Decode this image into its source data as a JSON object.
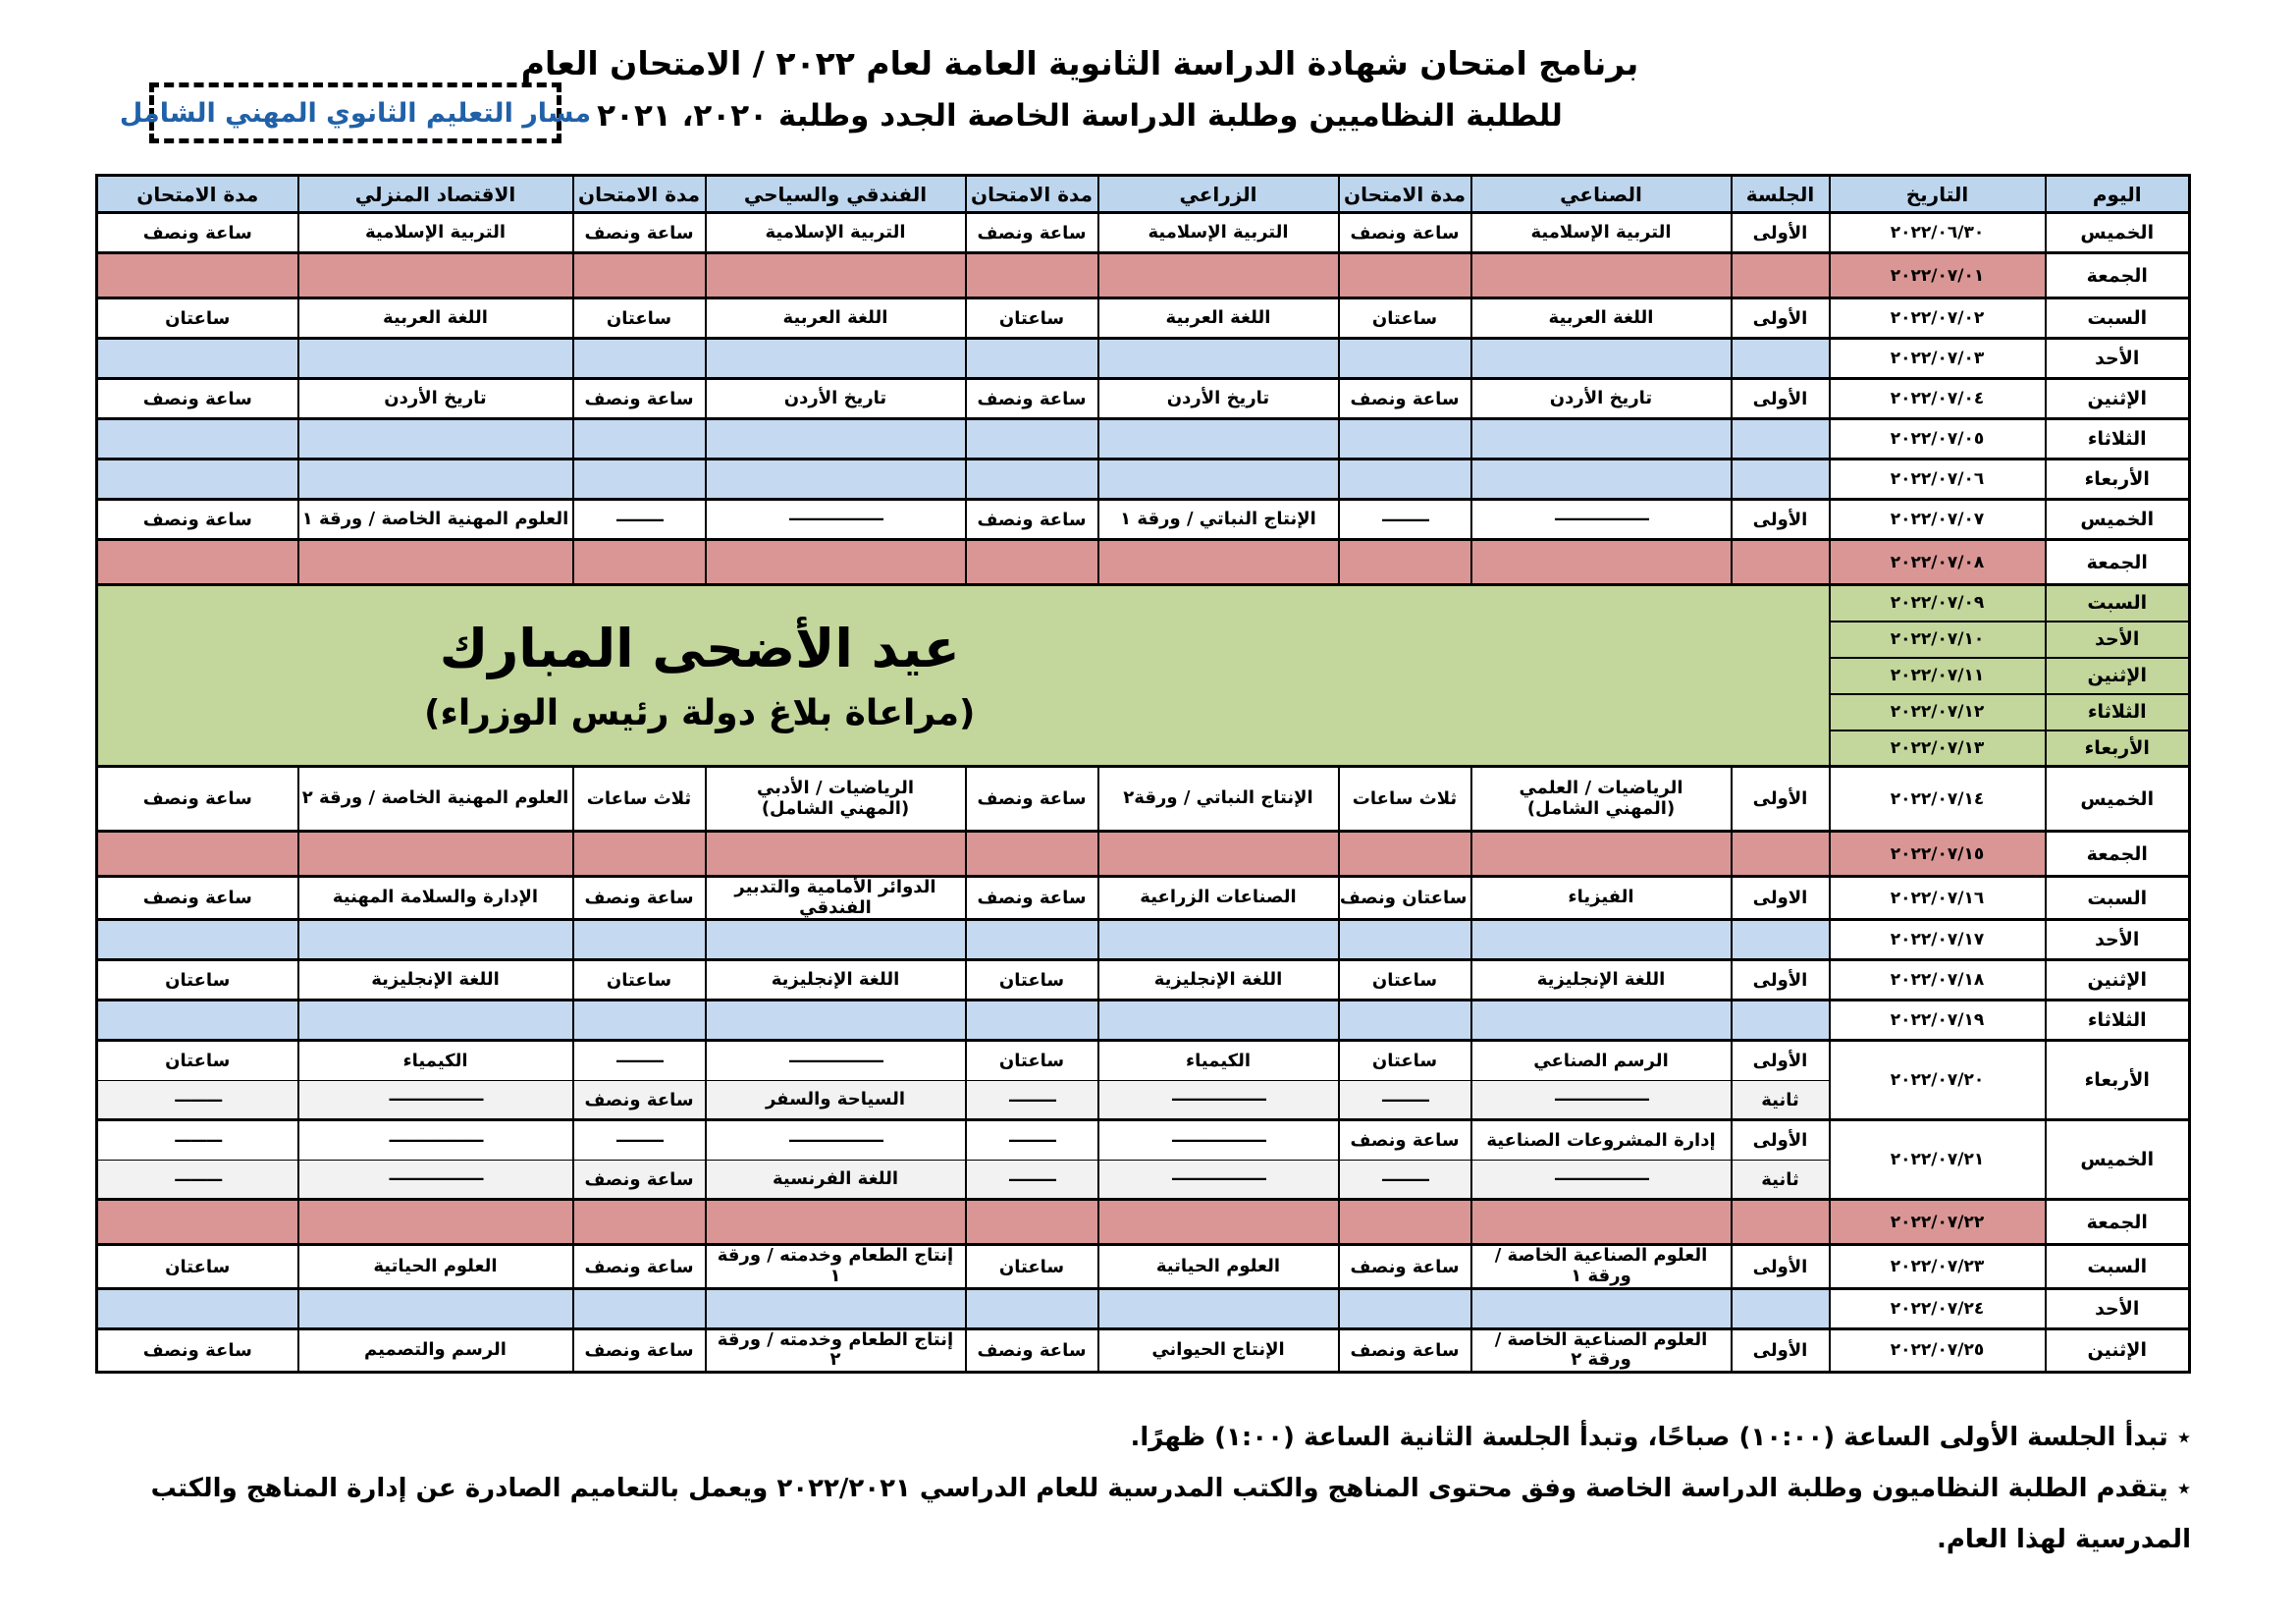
{
  "header": {
    "title_line1": "برنامج امتحان شهادة الدراسة الثانوية العامة  لعام ٢٠٢٢ / الامتحان العام",
    "title_line2": "للطلبة النظاميين وطلبة الدراسة الخاصة الجدد وطلبة ٢٠٢٠، ٢٠٢١"
  },
  "badge": {
    "label": "مسار التعليم الثانوي المهني الشامل"
  },
  "colors": {
    "header_bg": "#BDD6EE",
    "empty_row_bg": "#C5D9F1",
    "friday_row_bg": "#D99694",
    "holiday_bg": "#C3D69B",
    "second_session_bg": "#F2F2F2",
    "badge_text": "#2061A8"
  },
  "table": {
    "columns": [
      "اليوم",
      "التاريخ",
      "الجلسة",
      "الصناعي",
      "مدة الامتحان",
      "الزراعي",
      "مدة الامتحان",
      "الفندقي والسياحي",
      "مدة الامتحان",
      "الاقتصاد المنزلي",
      "مدة الامتحان"
    ],
    "rows": [
      {
        "type": "exam",
        "day": "الخميس",
        "date": "٢٠٢٢/٠٦/٣٠",
        "session": "الأولى",
        "cells": [
          "التربية الإسلامية",
          "ساعة ونصف",
          "التربية الإسلامية",
          "ساعة ونصف",
          "التربية الإسلامية",
          "ساعة ونصف",
          "التربية الإسلامية",
          "ساعة ونصف"
        ]
      },
      {
        "type": "friday",
        "day": "الجمعة",
        "date": "٢٠٢٢/٠٧/٠١"
      },
      {
        "type": "exam",
        "day": "السبت",
        "date": "٢٠٢٢/٠٧/٠٢",
        "session": "الأولى",
        "cells": [
          "اللغة العربية",
          "ساعتان",
          "اللغة العربية",
          "ساعتان",
          "اللغة العربية",
          "ساعتان",
          "اللغة العربية",
          "ساعتان"
        ]
      },
      {
        "type": "empty",
        "day": "الأحد",
        "date": "٢٠٢٢/٠٧/٠٣"
      },
      {
        "type": "exam",
        "day": "الإثنين",
        "date": "٢٠٢٢/٠٧/٠٤",
        "session": "الأولى",
        "cells": [
          "تاريخ الأردن",
          "ساعة ونصف",
          "تاريخ الأردن",
          "ساعة ونصف",
          "تاريخ الأردن",
          "ساعة ونصف",
          "تاريخ الأردن",
          "ساعة ونصف"
        ]
      },
      {
        "type": "empty",
        "day": "الثلاثاء",
        "date": "٢٠٢٢/٠٧/٠٥"
      },
      {
        "type": "empty",
        "day": "الأربعاء",
        "date": "٢٠٢٢/٠٧/٠٦"
      },
      {
        "type": "exam",
        "day": "الخميس",
        "date": "٢٠٢٢/٠٧/٠٧",
        "session": "الأولى",
        "cells": [
          "——————",
          "———",
          "الإنتاج النباتي / ورقة ١",
          "ساعة ونصف",
          "——————",
          "———",
          "العلوم المهنية الخاصة / ورقة ١",
          "ساعة ونصف"
        ]
      },
      {
        "type": "friday",
        "day": "الجمعة",
        "date": "٢٠٢٢/٠٧/٠٨"
      },
      {
        "type": "holiday",
        "title": "عيد الأضحى المبارك",
        "note": "(مراعاة بلاغ دولة رئيس الوزراء)",
        "days": [
          {
            "day": "السبت",
            "date": "٢٠٢٢/٠٧/٠٩"
          },
          {
            "day": "الأحد",
            "date": "٢٠٢٢/٠٧/١٠"
          },
          {
            "day": "الإثنين",
            "date": "٢٠٢٢/٠٧/١١"
          },
          {
            "day": "الثلاثاء",
            "date": "٢٠٢٢/٠٧/١٢"
          },
          {
            "day": "الأربعاء",
            "date": "٢٠٢٢/٠٧/١٣"
          }
        ]
      },
      {
        "type": "exam",
        "day": "الخميس",
        "date": "٢٠٢٢/٠٧/١٤",
        "session": "الأولى",
        "cells": [
          "الرياضيات / العلمي\n(المهني الشامل)",
          "ثلاث ساعات",
          "الإنتاج النباتي / ورقة٢",
          "ساعة ونصف",
          "الرياضيات / الأدبي\n(المهني الشامل)",
          "ثلاث ساعات",
          "العلوم المهنية الخاصة / ورقة ٢",
          "ساعة ونصف"
        ]
      },
      {
        "type": "friday",
        "day": "الجمعة",
        "date": "٢٠٢٢/٠٧/١٥"
      },
      {
        "type": "exam",
        "day": "السبت",
        "date": "٢٠٢٢/٠٧/١٦",
        "session": "الاولى",
        "cells": [
          "الفيزياء",
          "ساعتان ونصف",
          "الصناعات الزراعية",
          "ساعة ونصف",
          "الدوائر الأمامية والتدبير الفندقي",
          "ساعة ونصف",
          "الإدارة والسلامة المهنية",
          "ساعة ونصف"
        ]
      },
      {
        "type": "empty",
        "day": "الأحد",
        "date": "٢٠٢٢/٠٧/١٧"
      },
      {
        "type": "exam",
        "day": "الإثنين",
        "date": "٢٠٢٢/٠٧/١٨",
        "session": "الأولى",
        "cells": [
          "اللغة الإنجليزية",
          "ساعتان",
          "اللغة الإنجليزية",
          "ساعتان",
          "اللغة الإنجليزية",
          "ساعتان",
          "اللغة الإنجليزية",
          "ساعتان"
        ]
      },
      {
        "type": "empty",
        "day": "الثلاثاء",
        "date": "٢٠٢٢/٠٧/١٩"
      },
      {
        "type": "double",
        "day": "الأربعاء",
        "date": "٢٠٢٢/٠٧/٢٠",
        "sessions": [
          {
            "session": "الأولى",
            "cells": [
              "الرسم الصناعي",
              "ساعتان",
              "الكيمياء",
              "ساعتان",
              "——————",
              "———",
              "الكيمياء",
              "ساعتان"
            ]
          },
          {
            "session": "ثانية",
            "cells": [
              "——————",
              "———",
              "——————",
              "———",
              "السياحة والسفر",
              "ساعة ونصف",
              "——————",
              "———"
            ]
          }
        ]
      },
      {
        "type": "double",
        "day": "الخميس",
        "date": "٢٠٢٢/٠٧/٢١",
        "sessions": [
          {
            "session": "الأولى",
            "cells": [
              "إدارة المشروعات الصناعية",
              "ساعة ونصف",
              "——————",
              "———",
              "——————",
              "———",
              "——————",
              "———"
            ]
          },
          {
            "session": "ثانية",
            "cells": [
              "——————",
              "———",
              "——————",
              "———",
              "اللغة الفرنسية",
              "ساعة ونصف",
              "——————",
              "———"
            ]
          }
        ]
      },
      {
        "type": "friday",
        "day": "الجمعة",
        "date": "٢٠٢٢/٠٧/٢٢"
      },
      {
        "type": "exam",
        "day": "السبت",
        "date": "٢٠٢٢/٠٧/٢٣",
        "session": "الأولى",
        "cells": [
          "العلوم الصناعية الخاصة / ورقة ١",
          "ساعة ونصف",
          "العلوم الحياتية",
          "ساعتان",
          "إنتاج الطعام وخدمته / ورقة ١",
          "ساعة ونصف",
          "العلوم الحياتية",
          "ساعتان"
        ]
      },
      {
        "type": "empty",
        "day": "الأحد",
        "date": "٢٠٢٢/٠٧/٢٤"
      },
      {
        "type": "exam",
        "day": "الإثنين",
        "date": "٢٠٢٢/٠٧/٢٥",
        "session": "الأولى",
        "cells": [
          "العلوم الصناعية الخاصة / ورقة ٢",
          "ساعة ونصف",
          "الإنتاج الحيواني",
          "ساعة ونصف",
          "إنتاج الطعام وخدمته / ورقة ٢",
          "ساعة ونصف",
          "الرسم والتصميم",
          "ساعة ونصف"
        ]
      }
    ]
  },
  "footnotes": [
    "٭ تبدأ الجلسة الأولى الساعة (١٠:٠٠) صباحًا، وتبدأ الجلسة الثانية الساعة (١:٠٠) ظهرًا.",
    "٭ يتقدم الطلبة النظاميون وطلبة الدراسة الخاصة وفق محتوى المناهج والكتب المدرسية للعام الدراسي ٢٠٢٢/٢٠٢١ ويعمل بالتعاميم الصادرة عن إدارة المناهج والكتب المدرسية لهذا العام."
  ]
}
